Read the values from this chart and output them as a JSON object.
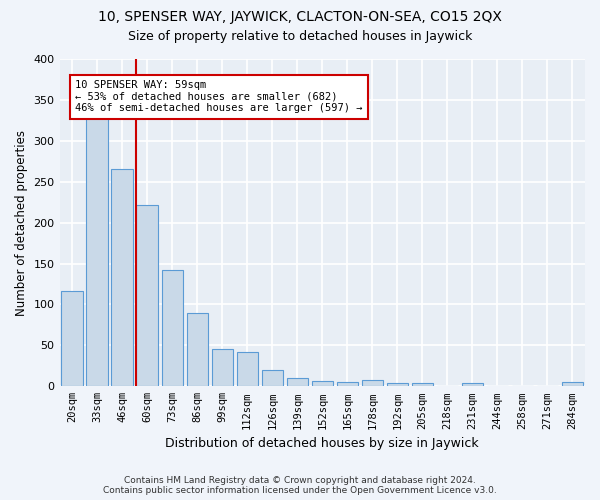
{
  "title": "10, SPENSER WAY, JAYWICK, CLACTON-ON-SEA, CO15 2QX",
  "subtitle": "Size of property relative to detached houses in Jaywick",
  "xlabel": "Distribution of detached houses by size in Jaywick",
  "ylabel": "Number of detached properties",
  "categories": [
    "20sqm",
    "33sqm",
    "46sqm",
    "60sqm",
    "73sqm",
    "86sqm",
    "99sqm",
    "112sqm",
    "126sqm",
    "139sqm",
    "152sqm",
    "165sqm",
    "178sqm",
    "192sqm",
    "205sqm",
    "218sqm",
    "231sqm",
    "244sqm",
    "258sqm",
    "271sqm",
    "284sqm"
  ],
  "values": [
    116,
    332,
    266,
    222,
    142,
    90,
    45,
    42,
    20,
    10,
    7,
    5,
    8,
    4,
    4,
    0,
    4,
    0,
    0,
    0,
    5
  ],
  "bar_color": "#c9d9e8",
  "bar_edge_color": "#5b9bd5",
  "background_color": "#e8eef5",
  "grid_color": "#ffffff",
  "marker_line_index": 2.575,
  "marker_label": "10 SPENSER WAY: 59sqm",
  "annotation_line1": "← 53% of detached houses are smaller (682)",
  "annotation_line2": "46% of semi-detached houses are larger (597) →",
  "annotation_box_facecolor": "#ffffff",
  "annotation_box_edgecolor": "#cc0000",
  "marker_line_color": "#cc0000",
  "ylim_max": 400,
  "yticks": [
    0,
    50,
    100,
    150,
    200,
    250,
    300,
    350,
    400
  ],
  "fig_bg": "#f0f4fa",
  "footer1": "Contains HM Land Registry data © Crown copyright and database right 2024.",
  "footer2": "Contains public sector information licensed under the Open Government Licence v3.0."
}
